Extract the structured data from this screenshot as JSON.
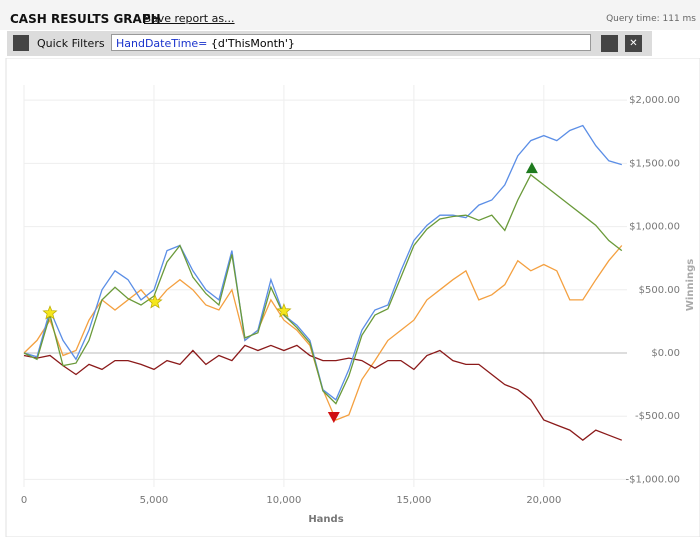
{
  "header": {
    "title": "CASH RESULTS GRAPH",
    "save": "Save report as...",
    "query_time": "Query time: 111 ms"
  },
  "filter": {
    "label": "Quick Filters",
    "key": "HandDateTime=",
    "value": " {d'ThisMonth'}"
  },
  "chart_data": {
    "type": "line",
    "x_label": "Hands",
    "y_label": "Winnings",
    "x": [
      0,
      500,
      1000,
      1500,
      2000,
      2500,
      3000,
      3500,
      4000,
      4500,
      5000,
      5500,
      6000,
      6500,
      7000,
      7500,
      8000,
      8500,
      9000,
      9500,
      10000,
      10500,
      11000,
      11500,
      12000,
      12500,
      13000,
      13500,
      14000,
      14500,
      15000,
      15500,
      16000,
      16500,
      17000,
      17500,
      18000,
      18500,
      19000,
      19500,
      20000,
      20500,
      21000,
      21500,
      22000,
      22500,
      23000
    ],
    "series": [
      {
        "color": "#f4a040",
        "values": [
          0,
          100,
          260,
          -20,
          20,
          260,
          420,
          340,
          420,
          500,
          380,
          500,
          580,
          500,
          380,
          340,
          500,
          100,
          180,
          420,
          260,
          180,
          60,
          -290,
          -530,
          -490,
          -210,
          -60,
          100,
          180,
          260,
          420,
          500,
          580,
          650,
          420,
          460,
          540,
          730,
          650,
          700,
          650,
          420,
          420,
          580,
          730,
          850
        ]
      },
      {
        "color": "#8b1a1a",
        "values": [
          -20,
          -40,
          -20,
          -100,
          -170,
          -90,
          -130,
          -60,
          -60,
          -90,
          -130,
          -60,
          -90,
          20,
          -90,
          -20,
          -60,
          60,
          20,
          60,
          20,
          60,
          -20,
          -60,
          -60,
          -40,
          -60,
          -120,
          -60,
          -60,
          -130,
          -20,
          20,
          -60,
          -90,
          -90,
          -170,
          -250,
          -290,
          -370,
          -530,
          -570,
          -610,
          -690,
          -610,
          -650,
          -690
        ]
      },
      {
        "color": "#5b8ee6",
        "values": [
          0,
          -30,
          340,
          100,
          -50,
          180,
          500,
          650,
          580,
          420,
          500,
          810,
          850,
          650,
          500,
          420,
          810,
          100,
          180,
          580,
          300,
          220,
          100,
          -290,
          -370,
          -130,
          180,
          340,
          380,
          650,
          890,
          1010,
          1090,
          1090,
          1070,
          1170,
          1210,
          1330,
          1560,
          1680,
          1720,
          1680,
          1760,
          1800,
          1640,
          1520,
          1490
        ]
      },
      {
        "color": "#6a9a3a",
        "values": [
          0,
          -50,
          300,
          -100,
          -80,
          100,
          420,
          520,
          430,
          380,
          450,
          720,
          850,
          600,
          470,
          380,
          780,
          120,
          160,
          520,
          300,
          200,
          80,
          -300,
          -400,
          -180,
          140,
          300,
          350,
          600,
          850,
          980,
          1060,
          1080,
          1090,
          1050,
          1090,
          970,
          1210,
          1410,
          1330,
          1250,
          1170,
          1090,
          1010,
          890,
          810
        ]
      }
    ],
    "markers": [
      {
        "shape": "star",
        "color": "#f5e61c",
        "x": 1000,
        "y": 316
      },
      {
        "shape": "star",
        "color": "#f5e61c",
        "x": 5040,
        "y": 403
      },
      {
        "shape": "star",
        "color": "#f5e61c",
        "x": 10000,
        "y": 332
      },
      {
        "shape": "triangle-up",
        "color": "#1e7a1e",
        "x": 19540,
        "y": 1462
      },
      {
        "shape": "triangle-down",
        "color": "#d01010",
        "x": 11920,
        "y": -506
      }
    ],
    "xlim": [
      0,
      23200
    ],
    "ylim": [
      -1060,
      2120
    ],
    "xticks": [
      0,
      {
        "value": 5000,
        "label": "5,000"
      },
      {
        "value": 10000,
        "label": "10,000"
      },
      {
        "value": 15000,
        "label": "15,000"
      },
      {
        "value": 20000,
        "label": "20,000"
      }
    ],
    "yticks": [
      {
        "value": -1000,
        "label": "-$1,000.00"
      },
      {
        "value": -500,
        "label": "-$500.00"
      },
      {
        "value": 0,
        "label": "$0.00"
      },
      {
        "value": 500,
        "label": "$500.00"
      },
      {
        "value": 1000,
        "label": "$1,000.00"
      },
      {
        "value": 1500,
        "label": "$1,500.00"
      },
      {
        "value": 2000,
        "label": "$2,000.00"
      }
    ],
    "grid": true
  }
}
